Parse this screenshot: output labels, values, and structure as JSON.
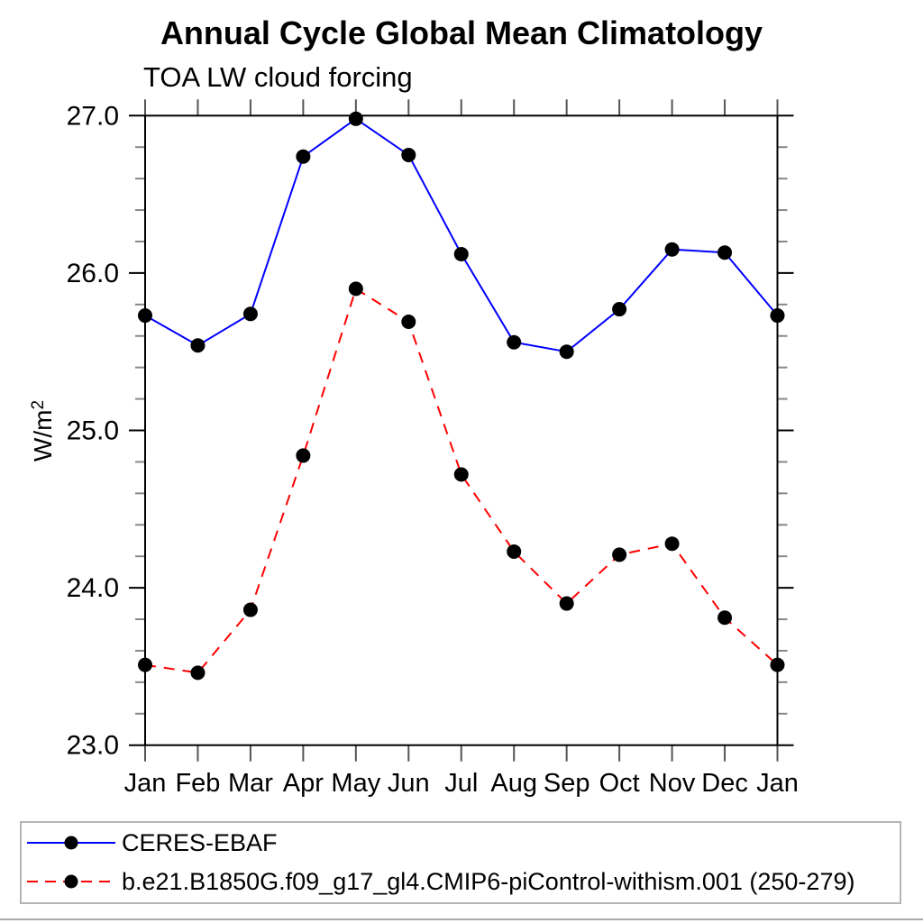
{
  "title": "Annual Cycle Global Mean Climatology",
  "subtitle": "TOA LW cloud forcing",
  "ylabel_parts": {
    "base": "W/m",
    "sup": "2"
  },
  "chart_data": {
    "type": "line",
    "categories": [
      "Jan",
      "Feb",
      "Mar",
      "Apr",
      "May",
      "Jun",
      "Jul",
      "Aug",
      "Sep",
      "Oct",
      "Nov",
      "Dec",
      "Jan"
    ],
    "series": [
      {
        "name": "CERES-EBAF",
        "color": "#0000ff",
        "line_style": "solid",
        "line_width": 2,
        "marker": "circle",
        "marker_color": "#000000",
        "values": [
          25.73,
          25.54,
          25.74,
          26.74,
          26.98,
          26.75,
          26.12,
          25.56,
          25.5,
          25.77,
          26.15,
          26.13,
          25.73
        ]
      },
      {
        "name": "b.e21.B1850G.f09_g17_gl4.CMIP6-piControl-withism.001 (250-279)",
        "color": "#ff0000",
        "line_style": "dashed",
        "line_width": 2,
        "marker": "circle",
        "marker_color": "#000000",
        "values": [
          23.51,
          23.46,
          23.86,
          24.84,
          25.9,
          25.69,
          24.72,
          24.23,
          23.9,
          24.21,
          24.28,
          23.81,
          23.51
        ]
      }
    ],
    "ylabel": "W/m²",
    "ylim": [
      23.0,
      27.0
    ],
    "ytick_major_labels": [
      "23.0",
      "24.0",
      "25.0",
      "26.0",
      "27.0"
    ],
    "ytick_major": [
      23.0,
      24.0,
      25.0,
      26.0,
      27.0
    ],
    "ytick_minor_step": 0.2,
    "grid": false,
    "legend_position": "bottom-box"
  },
  "colors": {
    "axis": "#000000",
    "minor_tick": "#888888",
    "month_tick": "#555555",
    "legend_border": "#b5b5b5"
  }
}
